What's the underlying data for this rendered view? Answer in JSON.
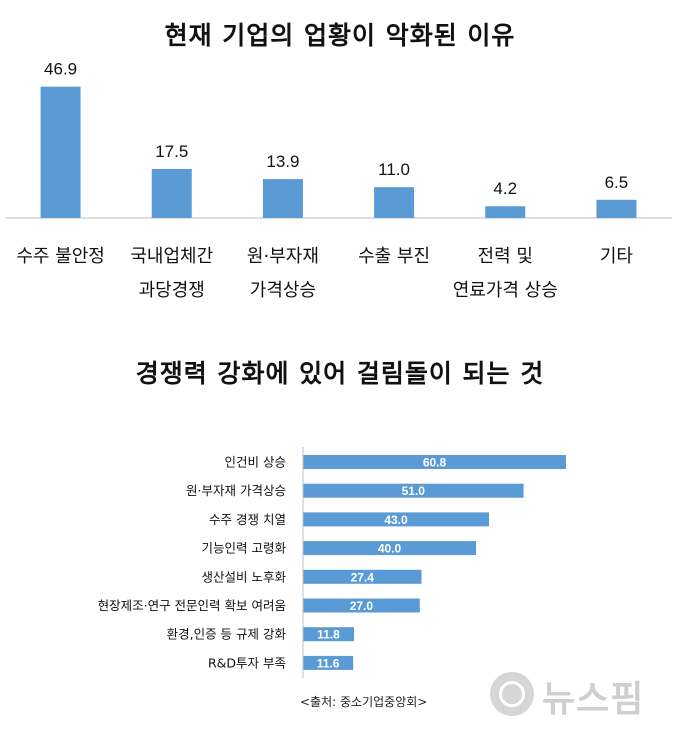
{
  "chart_data": [
    {
      "type": "bar",
      "title": "현재 기업의 업황이 악화된 이유",
      "categories": [
        [
          "수주 불안정"
        ],
        [
          "국내업체간",
          "과당경쟁"
        ],
        [
          "원·부자재",
          "가격상승"
        ],
        [
          "수출 부진"
        ],
        [
          "전력 및",
          "연료가격 상승"
        ],
        [
          "기타"
        ]
      ],
      "values": [
        46.9,
        17.5,
        13.9,
        11.0,
        4.2,
        6.5
      ],
      "value_labels": [
        "46.9",
        "17.5",
        "13.9",
        "11.0",
        "4.2",
        "6.5"
      ],
      "ylim": [
        0,
        50
      ],
      "grid": false,
      "bar_color": "#5b9bd5"
    },
    {
      "type": "bar",
      "orientation": "horizontal",
      "title": "경쟁력 강화에 있어 걸림돌이 되는 것",
      "categories": [
        "인건비 상승",
        "원·부자재 가격상승",
        "수주 경쟁 치열",
        "기능인력 고령화",
        "생산설비 노후화",
        "현장제조·연구 전문인력 확보 여려움",
        "환경,인증 등 규제 강화",
        "R&D투자 부족"
      ],
      "values": [
        60.8,
        51.0,
        43.0,
        40.0,
        27.4,
        27.0,
        11.8,
        11.6
      ],
      "value_labels": [
        "60.8",
        "51.0",
        "43.0",
        "40.0",
        "27.4",
        "27.0",
        "11.8",
        "11.6"
      ],
      "xlim": [
        0,
        62
      ],
      "grid": false,
      "bar_color": "#5b9bd5",
      "label_color": "#ffffff"
    }
  ],
  "source": "<출처: 중소기업중앙회>",
  "watermark": "뉴스핌",
  "watermark_icon": "newspim-logo-icon"
}
